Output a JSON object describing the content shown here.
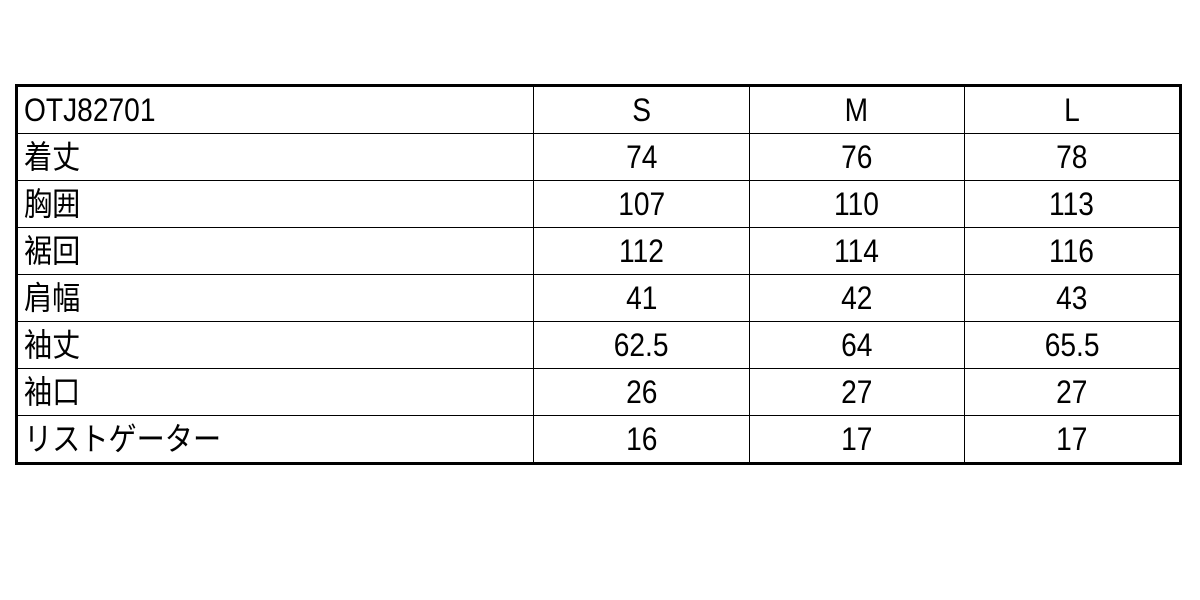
{
  "table": {
    "header": {
      "label": "OTJ82701",
      "sizes": [
        "S",
        "M",
        "L"
      ]
    },
    "rows": [
      {
        "label": "着丈",
        "values": [
          "74",
          "76",
          "78"
        ]
      },
      {
        "label": "胸囲",
        "values": [
          "107",
          "110",
          "113"
        ]
      },
      {
        "label": "裾回",
        "values": [
          "112",
          "114",
          "116"
        ]
      },
      {
        "label": "肩幅",
        "values": [
          "41",
          "42",
          "43"
        ]
      },
      {
        "label": "袖丈",
        "values": [
          "62.5",
          "64",
          "65.5"
        ]
      },
      {
        "label": "袖口",
        "values": [
          "26",
          "27",
          "27"
        ]
      },
      {
        "label": "リストゲーター",
        "values": [
          "16",
          "17",
          "17"
        ]
      }
    ]
  }
}
